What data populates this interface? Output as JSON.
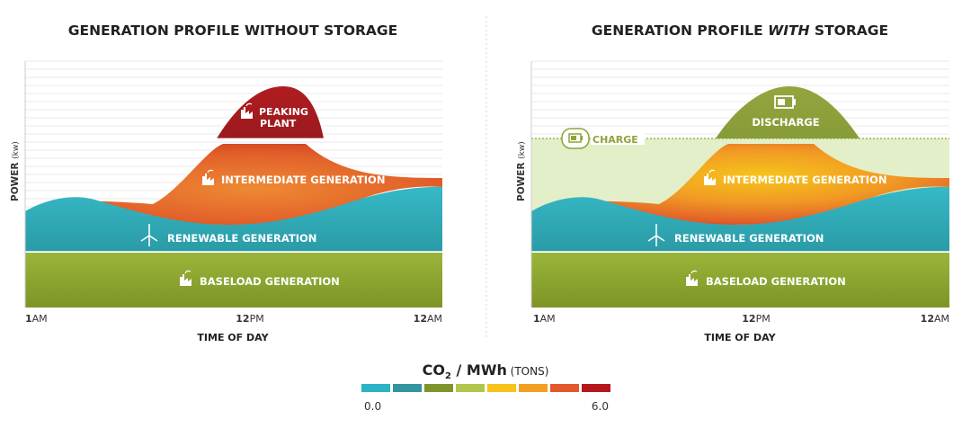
{
  "left_panel": {
    "title": "GENERATION PROFILE WITHOUT STORAGE",
    "y_axis_label": "POWER",
    "y_axis_unit": "(kw)",
    "x_axis_label": "TIME OF DAY",
    "x_ticks": [
      {
        "b": "1",
        "r": "AM"
      },
      {
        "b": "12",
        "r": "PM"
      },
      {
        "b": "12",
        "r": "AM"
      }
    ],
    "labels": {
      "peaking_line1": "PEAKING",
      "peaking_line2": "PLANT",
      "intermediate": "INTERMEDIATE GENERATION",
      "renewable": "RENEWABLE GENERATION",
      "baseload": "BASELOAD GENERATION"
    }
  },
  "right_panel": {
    "title_prefix": "GENERATION PROFILE ",
    "title_emphasis": "WITH",
    "title_suffix": " STORAGE",
    "y_axis_label": "POWER",
    "y_axis_unit": "(kw)",
    "x_axis_label": "TIME OF DAY",
    "x_ticks": [
      {
        "b": "1",
        "r": "AM"
      },
      {
        "b": "12",
        "r": "PM"
      },
      {
        "b": "12",
        "r": "AM"
      }
    ],
    "labels": {
      "charge": "CHARGE",
      "discharge": "DISCHARGE",
      "intermediate": "INTERMEDIATE GENERATION",
      "renewable": "RENEWABLE GENERATION",
      "baseload": "BASELOAD GENERATION"
    }
  },
  "legend": {
    "title_main": "CO",
    "title_sub": "2",
    "title_rest": " / MWh",
    "title_unit": " (TONS)",
    "min_label": "0.0",
    "max_label": "6.0",
    "swatches": [
      "#2cb3c5",
      "#33959f",
      "#7f952b",
      "#b1c64c",
      "#f6c21b",
      "#f2a024",
      "#e2582a",
      "#b5171b"
    ]
  },
  "colors": {
    "renewable": "#2fb0bd",
    "baseload": "#8fa832",
    "peaking": "#a51b20",
    "intermediate": "#e2612a",
    "charge_band": "#e2eec6",
    "discharge": "#8fa13d"
  }
}
